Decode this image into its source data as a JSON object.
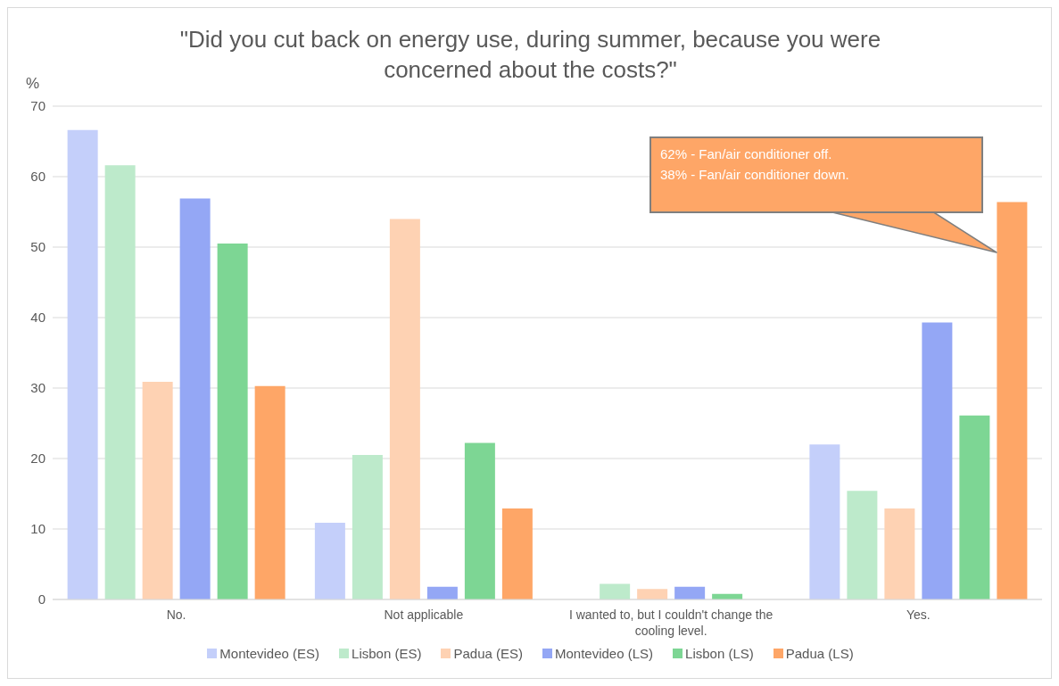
{
  "chart_data": {
    "type": "bar",
    "title": "\"Did you cut back on energy use, during summer, because you were concerned about the costs?\"",
    "ylabel": "%",
    "categories": [
      "No.",
      "Not applicable",
      "I wanted to, but I couldn't change the cooling level.",
      "Yes."
    ],
    "series": [
      {
        "name": "Montevideo (ES)",
        "color": "#c4cffa",
        "values": [
          66.6,
          10.9,
          0,
          22.0
        ]
      },
      {
        "name": "Lisbon (ES)",
        "color": "#bdeacb",
        "values": [
          61.6,
          20.5,
          2.2,
          15.4
        ]
      },
      {
        "name": "Padua (ES)",
        "color": "#fed2b3",
        "values": [
          30.9,
          54.0,
          1.5,
          12.9
        ]
      },
      {
        "name": "Montevideo (LS)",
        "color": "#94a7f5",
        "values": [
          56.9,
          1.8,
          1.8,
          39.3
        ]
      },
      {
        "name": "Lisbon (LS)",
        "color": "#7dd694",
        "values": [
          50.5,
          22.2,
          0.8,
          26.1
        ]
      },
      {
        "name": "Padua (LS)",
        "color": "#fea667",
        "values": [
          30.3,
          12.9,
          0,
          56.4
        ]
      }
    ],
    "ylim": [
      0,
      70
    ],
    "yticks": [
      0,
      10,
      20,
      30,
      40,
      50,
      60,
      70
    ],
    "grid": "y",
    "legend": "bottom",
    "annotations": [
      "62% - Fan/air conditioner off.",
      "38% - Fan/air conditioner down."
    ]
  }
}
